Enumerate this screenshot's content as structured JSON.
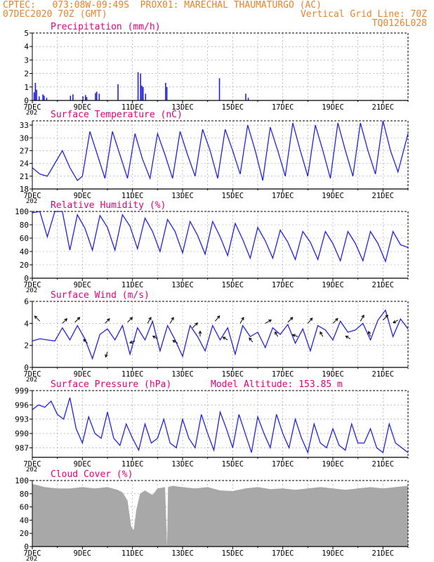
{
  "header": {
    "left_line1": "CPTEC:   073:08W-09:49S  PROX01: MARECHAL THAUMATURGO (AC)",
    "left_line2": "07DEC2020 70Z (GMT)",
    "right_line2": "Vertical Grid Line: 70Z",
    "right_line3": "TQ0126L028"
  },
  "colors": {
    "header": "#e8832a",
    "title": "#e0007a",
    "series": "#2222dd",
    "cloud": "#a8a8a8",
    "grid": "#9a9a9a",
    "axis_text": "#000000"
  },
  "x_axis": {
    "days": 15,
    "tick_labels": [
      "7DEC",
      "9DEC",
      "11DEC",
      "13DEC",
      "15DEC",
      "17DEC",
      "19DEC",
      "21DEC"
    ],
    "tick_day_offsets": [
      0,
      2,
      4,
      6,
      8,
      10,
      12,
      14
    ],
    "year_fragment": "202"
  },
  "chart_data": [
    {
      "id": "precip",
      "type": "bar",
      "title": "Precipitation (mm/h)",
      "ylim": [
        0,
        5
      ],
      "yticks": [
        0,
        1,
        2,
        3,
        4,
        5
      ],
      "bars": [
        [
          0.05,
          0.6
        ],
        [
          0.1,
          1.3
        ],
        [
          0.15,
          0.8
        ],
        [
          0.25,
          0.3
        ],
        [
          0.4,
          0.45
        ],
        [
          0.45,
          0.35
        ],
        [
          0.55,
          0.2
        ],
        [
          1.5,
          0.35
        ],
        [
          1.6,
          0.45
        ],
        [
          2.0,
          0.3
        ],
        [
          2.1,
          0.4
        ],
        [
          2.15,
          0.25
        ],
        [
          2.5,
          0.55
        ],
        [
          2.55,
          0.65
        ],
        [
          2.65,
          0.5
        ],
        [
          3.4,
          1.2
        ],
        [
          4.2,
          2.1
        ],
        [
          4.3,
          2.0
        ],
        [
          4.35,
          1.1
        ],
        [
          4.4,
          1.0
        ],
        [
          4.5,
          0.5
        ],
        [
          5.3,
          1.3
        ],
        [
          5.35,
          1.0
        ],
        [
          7.45,
          1.65
        ],
        [
          8.5,
          0.5
        ],
        [
          8.6,
          0.2
        ],
        [
          10.0,
          0.05
        ],
        [
          12.0,
          0.05
        ],
        [
          13.5,
          0.05
        ]
      ]
    },
    {
      "id": "temp",
      "type": "line",
      "title": "Surface Temperature (nC)",
      "ylim": [
        18,
        34
      ],
      "yticks": [
        18,
        21,
        24,
        27,
        30,
        33
      ],
      "x": [
        0,
        0.3,
        0.6,
        0.9,
        1.2,
        1.5,
        1.8,
        2.0,
        2.3,
        2.6,
        2.9,
        3.2,
        3.5,
        3.8,
        4.1,
        4.4,
        4.7,
        5.0,
        5.3,
        5.6,
        5.9,
        6.2,
        6.5,
        6.8,
        7.1,
        7.4,
        7.7,
        8.0,
        8.3,
        8.6,
        8.9,
        9.2,
        9.5,
        9.8,
        10.1,
        10.4,
        10.7,
        11.0,
        11.3,
        11.6,
        11.9,
        12.2,
        12.5,
        12.8,
        13.1,
        13.4,
        13.7,
        14.0,
        14.3,
        14.6,
        15.0
      ],
      "y": [
        23,
        21.5,
        21,
        24,
        27,
        23,
        20,
        21,
        31.5,
        26,
        20.5,
        31.5,
        26,
        20.5,
        31,
        25,
        20.5,
        31,
        26,
        20.5,
        31.5,
        26,
        21,
        32,
        27,
        20.5,
        32,
        27,
        21.5,
        33,
        27,
        20,
        32.5,
        27,
        21,
        33.5,
        27,
        21,
        33,
        27,
        20.5,
        33.5,
        27,
        21,
        33.5,
        27,
        21.5,
        34,
        27,
        22,
        31
      ]
    },
    {
      "id": "rh",
      "type": "line",
      "title": "Relative Humidity (%)",
      "ylim": [
        0,
        100
      ],
      "yticks": [
        0,
        20,
        40,
        60,
        80,
        100
      ],
      "x": [
        0,
        0.3,
        0.6,
        0.9,
        1.2,
        1.5,
        1.8,
        2.1,
        2.4,
        2.7,
        3.0,
        3.3,
        3.6,
        3.9,
        4.2,
        4.5,
        4.8,
        5.1,
        5.4,
        5.7,
        6.0,
        6.3,
        6.6,
        6.9,
        7.2,
        7.5,
        7.8,
        8.1,
        8.4,
        8.7,
        9.0,
        9.3,
        9.6,
        9.9,
        10.2,
        10.5,
        10.8,
        11.1,
        11.4,
        11.7,
        12.0,
        12.3,
        12.6,
        12.9,
        13.2,
        13.5,
        13.8,
        14.1,
        14.4,
        14.7,
        15.0
      ],
      "y": [
        98,
        100,
        62,
        100,
        100,
        42,
        95,
        75,
        42,
        94,
        76,
        42,
        95,
        78,
        44,
        90,
        70,
        40,
        88,
        70,
        38,
        85,
        64,
        36,
        85,
        62,
        34,
        82,
        58,
        30,
        76,
        56,
        30,
        72,
        54,
        28,
        70,
        54,
        28,
        70,
        52,
        26,
        70,
        52,
        26,
        70,
        52,
        25,
        70,
        50,
        46
      ]
    },
    {
      "id": "wind",
      "type": "line",
      "title": "Surface Wind (m/s)",
      "ylim": [
        0,
        6
      ],
      "yticks": [
        0,
        2,
        4,
        6
      ],
      "x": [
        0,
        0.3,
        0.6,
        0.9,
        1.2,
        1.5,
        1.8,
        2.1,
        2.4,
        2.7,
        3.0,
        3.3,
        3.6,
        3.9,
        4.2,
        4.5,
        4.8,
        5.1,
        5.4,
        5.7,
        6.0,
        6.3,
        6.6,
        6.9,
        7.2,
        7.5,
        7.8,
        8.1,
        8.4,
        8.7,
        9.0,
        9.3,
        9.6,
        9.9,
        10.2,
        10.5,
        10.8,
        11.1,
        11.4,
        11.7,
        12.0,
        12.3,
        12.6,
        12.9,
        13.2,
        13.5,
        13.8,
        14.1,
        14.4,
        14.7,
        15.0
      ],
      "y": [
        2.4,
        2.6,
        2.5,
        2.4,
        3.6,
        2.5,
        3.8,
        2.6,
        0.8,
        3.0,
        3.5,
        2.5,
        3.8,
        1.2,
        3.6,
        2.5,
        4.2,
        1.5,
        3.8,
        2.5,
        1.0,
        3.8,
        2.8,
        1.5,
        3.8,
        2.5,
        3.6,
        1.2,
        3.8,
        2.8,
        3.2,
        1.8,
        3.6,
        3.0,
        3.9,
        2.2,
        3.5,
        1.5,
        3.8,
        3.4,
        2.5,
        4.2,
        3.2,
        3.4,
        4.0,
        2.5,
        4.3,
        5.2,
        2.8,
        4.4,
        3.5
      ],
      "arrows": [
        [
          0.3,
          4.2,
          4.0,
          135
        ],
        [
          1.2,
          4.0,
          3.6,
          45
        ],
        [
          1.7,
          4.1,
          3.8,
          45
        ],
        [
          2.2,
          2.2,
          3.0,
          135
        ],
        [
          2.9,
          4.0,
          3.6,
          45
        ],
        [
          3.0,
          1.4,
          3.0,
          250
        ],
        [
          3.8,
          4.1,
          3.8,
          45
        ],
        [
          4.1,
          2.4,
          3.0,
          200
        ],
        [
          4.6,
          4.0,
          3.8,
          60
        ],
        [
          5.0,
          2.6,
          3.0,
          150
        ],
        [
          5.5,
          4.0,
          3.8,
          60
        ],
        [
          5.8,
          2.2,
          3.0,
          150
        ],
        [
          6.4,
          3.6,
          3.8,
          45
        ],
        [
          6.7,
          2.8,
          3.0,
          90
        ],
        [
          7.3,
          4.2,
          3.8,
          50
        ],
        [
          7.8,
          2.5,
          3.0,
          150
        ],
        [
          8.3,
          4.0,
          3.8,
          60
        ],
        [
          8.8,
          2.3,
          3.0,
          130
        ],
        [
          9.3,
          4.0,
          3.8,
          30
        ],
        [
          9.8,
          2.8,
          3.0,
          120
        ],
        [
          10.2,
          4.1,
          3.8,
          45
        ],
        [
          10.6,
          2.8,
          3.0,
          160
        ],
        [
          11.0,
          4.0,
          3.8,
          50
        ],
        [
          11.6,
          2.8,
          3.0,
          120
        ],
        [
          12.0,
          4.0,
          3.8,
          45
        ],
        [
          12.7,
          2.6,
          3.0,
          150
        ],
        [
          13.1,
          4.2,
          3.8,
          60
        ],
        [
          13.5,
          2.8,
          3.0,
          110
        ],
        [
          14.0,
          4.3,
          3.8,
          45
        ],
        [
          14.6,
          4.3,
          3.0,
          210
        ]
      ]
    },
    {
      "id": "pres",
      "type": "line",
      "title": "Surface Pressure (hPa)",
      "annotation": "Model Altitude: 153.85 m",
      "ylim": [
        985,
        999
      ],
      "yticks": [
        987,
        990,
        993,
        996,
        999
      ],
      "x": [
        0,
        0.25,
        0.5,
        0.75,
        1.0,
        1.25,
        1.5,
        1.75,
        2.0,
        2.25,
        2.5,
        2.75,
        3.0,
        3.25,
        3.5,
        3.75,
        4.0,
        4.25,
        4.5,
        4.75,
        5.0,
        5.25,
        5.5,
        5.75,
        6.0,
        6.25,
        6.5,
        6.75,
        7.0,
        7.25,
        7.5,
        7.75,
        8.0,
        8.25,
        8.5,
        8.75,
        9.0,
        9.25,
        9.5,
        9.75,
        10.0,
        10.25,
        10.5,
        10.75,
        11.0,
        11.25,
        11.5,
        11.75,
        12.0,
        12.25,
        12.5,
        12.75,
        13.0,
        13.25,
        13.5,
        13.75,
        14.0,
        14.25,
        14.5,
        14.75,
        15.0
      ],
      "y": [
        995,
        996,
        995.5,
        996.8,
        994,
        993,
        997.5,
        991,
        988,
        993.5,
        990,
        989,
        994.5,
        989,
        987.5,
        992,
        989,
        986.5,
        992,
        988,
        989,
        993,
        988,
        987,
        993,
        989,
        987,
        994,
        990,
        986.5,
        994.5,
        991,
        987,
        994,
        990,
        986,
        993.5,
        990,
        987,
        994,
        990,
        987,
        993,
        989,
        986,
        992,
        988,
        987,
        991,
        987.5,
        986.5,
        992,
        988,
        988,
        991,
        987,
        986,
        992,
        988,
        987,
        986
      ]
    },
    {
      "id": "cloud",
      "type": "area",
      "title": "Cloud Cover (%)",
      "ylim": [
        0,
        100
      ],
      "yticks": [
        0,
        20,
        40,
        60,
        80,
        100
      ],
      "x": [
        0,
        0.5,
        1.0,
        1.5,
        2.0,
        2.5,
        3.0,
        3.4,
        3.6,
        3.8,
        3.95,
        4.05,
        4.15,
        4.3,
        4.5,
        4.8,
        5.0,
        5.3,
        5.38,
        5.42,
        5.6,
        6.0,
        6.5,
        7.0,
        7.5,
        8.0,
        8.5,
        9.0,
        9.5,
        10.0,
        10.5,
        11.0,
        11.5,
        12.0,
        12.5,
        13.0,
        13.5,
        14.0,
        14.5,
        15.0
      ],
      "y": [
        95,
        90,
        88,
        88,
        90,
        88,
        90,
        86,
        82,
        70,
        30,
        25,
        55,
        80,
        85,
        78,
        88,
        90,
        0,
        90,
        92,
        90,
        88,
        90,
        85,
        84,
        88,
        90,
        87,
        88,
        86,
        88,
        90,
        88,
        86,
        88,
        90,
        88,
        90,
        92
      ]
    }
  ]
}
